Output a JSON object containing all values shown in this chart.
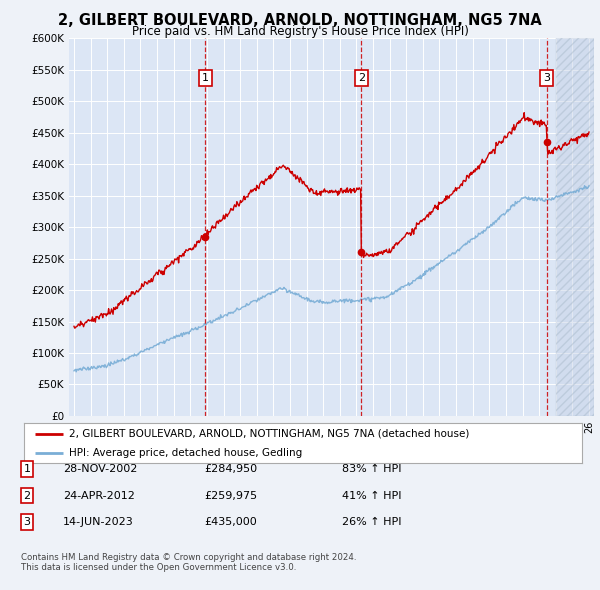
{
  "title": "2, GILBERT BOULEVARD, ARNOLD, NOTTINGHAM, NG5 7NA",
  "subtitle": "Price paid vs. HM Land Registry's House Price Index (HPI)",
  "ylim": [
    0,
    600000
  ],
  "yticks": [
    0,
    50000,
    100000,
    150000,
    200000,
    250000,
    300000,
    350000,
    400000,
    450000,
    500000,
    550000,
    600000
  ],
  "ytick_labels": [
    "£0",
    "£50K",
    "£100K",
    "£150K",
    "£200K",
    "£250K",
    "£300K",
    "£350K",
    "£400K",
    "£450K",
    "£500K",
    "£550K",
    "£600K"
  ],
  "background_color": "#eef2f8",
  "plot_bg_color": "#dce6f5",
  "grid_color": "#ffffff",
  "sale_color": "#cc0000",
  "hpi_color": "#7aaed6",
  "transactions": [
    {
      "label": "1",
      "date_str": "28-NOV-2002",
      "date_num": 2002.9,
      "price": 284950
    },
    {
      "label": "2",
      "date_str": "24-APR-2012",
      "date_num": 2012.3,
      "price": 259975
    },
    {
      "label": "3",
      "date_str": "14-JUN-2023",
      "date_num": 2023.45,
      "price": 435000
    }
  ],
  "legend_entries": [
    "2, GILBERT BOULEVARD, ARNOLD, NOTTINGHAM, NG5 7NA (detached house)",
    "HPI: Average price, detached house, Gedling"
  ],
  "footnote1": "Contains HM Land Registry data © Crown copyright and database right 2024.",
  "footnote2": "This data is licensed under the Open Government Licence v3.0.",
  "transaction_rows": [
    {
      "num": "1",
      "date": "28-NOV-2002",
      "price": "£284,950",
      "pct": "83% ↑ HPI"
    },
    {
      "num": "2",
      "date": "24-APR-2012",
      "price": "£259,975",
      "pct": "41% ↑ HPI"
    },
    {
      "num": "3",
      "date": "14-JUN-2023",
      "price": "£435,000",
      "pct": "26% ↑ HPI"
    }
  ],
  "xmin": 1994.7,
  "xmax": 2026.3,
  "hatch_start": 2024.0
}
